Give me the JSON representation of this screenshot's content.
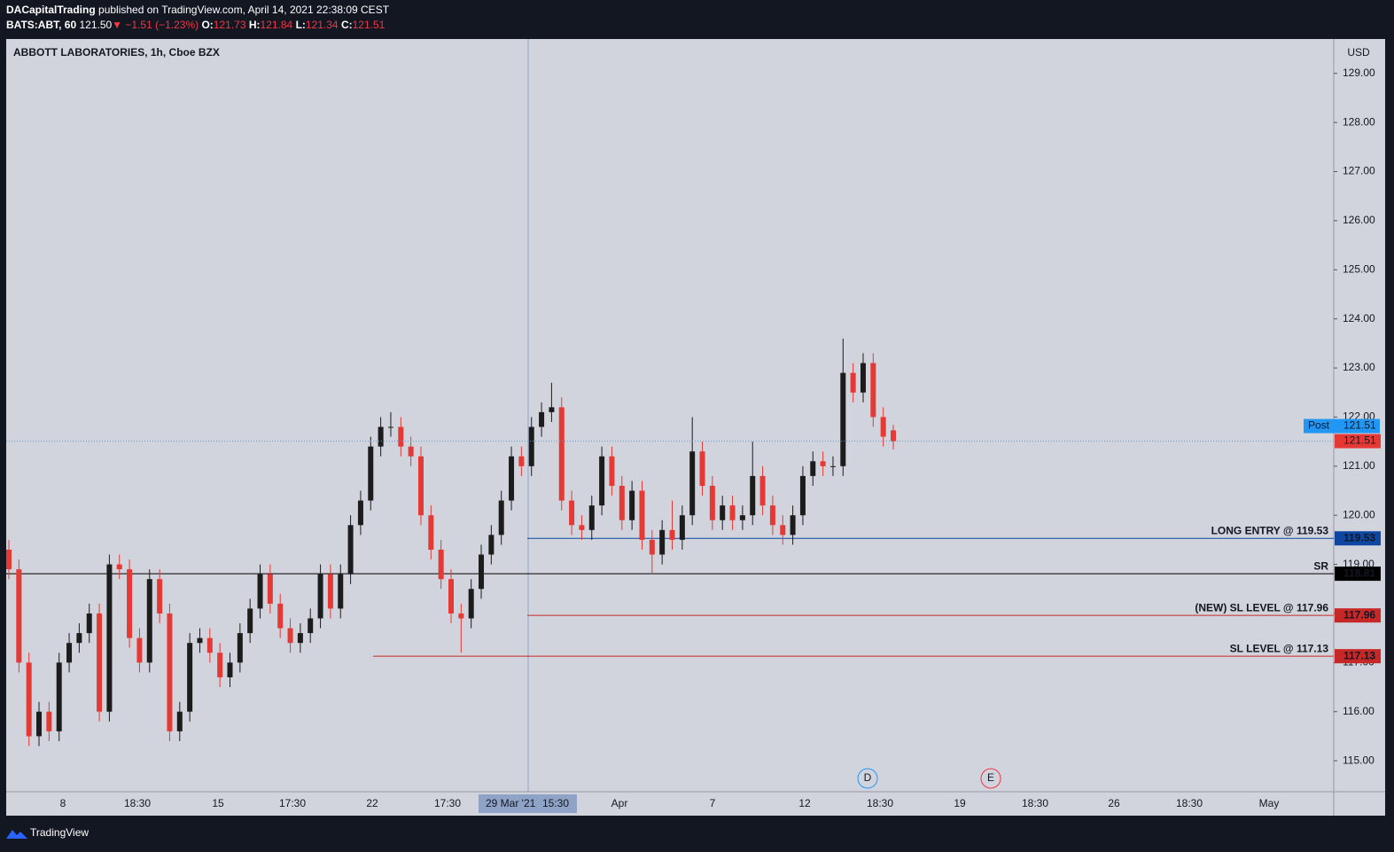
{
  "header": {
    "publisher": "DACapitalTrading",
    "published": "published on TradingView.com, April 14, 2021 22:38:09 CEST",
    "symbol": "BATS:ABT, 60",
    "last": "121.50",
    "change": "▼ −1.51 (−1.23%)",
    "ohlc_labels": [
      "O:",
      "H:",
      "L:",
      "C:"
    ]
  },
  "footer": "TradingView",
  "chart_data": {
    "type": "candlestick",
    "title": "ABBOTT LABORATORIES, 1h, Cboe BZX",
    "currency": "USD",
    "up_color": "#1c1c1c",
    "down_color": "#e53935",
    "ylim": [
      114.37,
      129.7
    ],
    "yticks": [
      {
        "value": 115,
        "label": "115.00"
      },
      {
        "value": 116,
        "label": "116.00"
      },
      {
        "value": 117,
        "label": "117.00"
      },
      {
        "value": 118,
        "label": "118.00"
      },
      {
        "value": 119,
        "label": "119.00"
      },
      {
        "value": 120,
        "label": "120.00"
      },
      {
        "value": 121,
        "label": "121.00"
      },
      {
        "value": 122,
        "label": "122.00"
      },
      {
        "value": 123,
        "label": "123.00"
      },
      {
        "value": 124,
        "label": "124.00"
      },
      {
        "value": 125,
        "label": "125.00"
      },
      {
        "value": 126,
        "label": "126.00"
      },
      {
        "value": 127,
        "label": "127.00"
      },
      {
        "value": 128,
        "label": "128.00"
      },
      {
        "value": 129,
        "label": "129.00"
      }
    ],
    "xticks": [
      "8",
      "18:30",
      "15",
      "17:30",
      "22",
      "17:30",
      "Apr",
      "7",
      "12",
      "18:30",
      "19",
      "18:30",
      "26",
      "18:30",
      "May"
    ],
    "crosshair": {
      "date": "29 Mar '21",
      "time": "15:30"
    },
    "events": [
      "D",
      "E"
    ],
    "post_price": {
      "label": "Post",
      "value": 121.51
    },
    "levels": [
      {
        "label": "LONG ENTRY @ 119.53",
        "value": 119.53,
        "color": "#0d47a1"
      },
      {
        "label": "SR",
        "value": 118.81,
        "color": "#000000"
      },
      {
        "label": "(NEW) SL LEVEL @ 117.96",
        "value": 117.96,
        "color": "#c62828"
      },
      {
        "label": "SL LEVEL @ 117.13",
        "value": 117.13,
        "color": "#c62828"
      }
    ],
    "ohlc": [
      [
        119.3,
        119.5,
        118.7,
        118.9
      ],
      [
        118.9,
        119.1,
        116.8,
        117.0
      ],
      [
        117.0,
        117.2,
        115.3,
        115.5
      ],
      [
        115.5,
        116.2,
        115.3,
        116.0
      ],
      [
        116.0,
        116.2,
        115.4,
        115.6
      ],
      [
        115.6,
        117.2,
        115.4,
        117.0
      ],
      [
        117.0,
        117.6,
        116.8,
        117.4
      ],
      [
        117.4,
        117.8,
        117.2,
        117.6
      ],
      [
        117.6,
        118.2,
        117.4,
        118.0
      ],
      [
        118.0,
        118.2,
        115.8,
        116.0
      ],
      [
        116.0,
        119.2,
        115.8,
        119.0
      ],
      [
        119.0,
        119.2,
        118.7,
        118.9
      ],
      [
        118.9,
        119.1,
        117.3,
        117.5
      ],
      [
        117.5,
        117.7,
        116.8,
        117.0
      ],
      [
        117.0,
        118.9,
        116.8,
        118.7
      ],
      [
        118.7,
        118.9,
        117.8,
        118.0
      ],
      [
        118.0,
        118.2,
        115.4,
        115.6
      ],
      [
        115.6,
        116.2,
        115.4,
        116.0
      ],
      [
        116.0,
        117.6,
        115.8,
        117.4
      ],
      [
        117.4,
        117.7,
        117.2,
        117.5
      ],
      [
        117.5,
        117.7,
        117.0,
        117.2
      ],
      [
        117.2,
        117.4,
        116.5,
        116.7
      ],
      [
        116.7,
        117.2,
        116.5,
        117.0
      ],
      [
        117.0,
        117.8,
        116.8,
        117.6
      ],
      [
        117.6,
        118.3,
        117.4,
        118.1
      ],
      [
        118.1,
        119.0,
        117.9,
        118.8
      ],
      [
        118.8,
        119.0,
        118.0,
        118.2
      ],
      [
        118.2,
        118.4,
        117.5,
        117.7
      ],
      [
        117.7,
        117.9,
        117.2,
        117.4
      ],
      [
        117.4,
        117.8,
        117.2,
        117.6
      ],
      [
        117.6,
        118.1,
        117.4,
        117.9
      ],
      [
        117.9,
        119.0,
        117.7,
        118.8
      ],
      [
        118.8,
        119.0,
        117.9,
        118.1
      ],
      [
        118.1,
        119.0,
        117.9,
        118.8
      ],
      [
        118.8,
        120.0,
        118.6,
        119.8
      ],
      [
        119.8,
        120.5,
        119.6,
        120.3
      ],
      [
        120.3,
        121.6,
        120.1,
        121.4
      ],
      [
        121.4,
        122.0,
        121.2,
        121.8
      ],
      [
        121.8,
        122.1,
        121.6,
        121.8
      ],
      [
        121.8,
        122.0,
        121.2,
        121.4
      ],
      [
        121.4,
        121.6,
        121.0,
        121.2
      ],
      [
        121.2,
        121.4,
        119.8,
        120.0
      ],
      [
        120.0,
        120.2,
        119.1,
        119.3
      ],
      [
        119.3,
        119.5,
        118.5,
        118.7
      ],
      [
        118.7,
        118.9,
        117.8,
        118.0
      ],
      [
        118.0,
        118.2,
        117.2,
        117.9
      ],
      [
        117.9,
        118.7,
        117.7,
        118.5
      ],
      [
        118.5,
        119.4,
        118.3,
        119.2
      ],
      [
        119.2,
        119.8,
        119.0,
        119.6
      ],
      [
        119.6,
        120.5,
        119.4,
        120.3
      ],
      [
        120.3,
        121.4,
        120.1,
        121.2
      ],
      [
        121.2,
        121.4,
        120.8,
        121.0
      ],
      [
        121.0,
        122.0,
        120.8,
        121.8
      ],
      [
        121.8,
        122.3,
        121.6,
        122.1
      ],
      [
        122.1,
        122.7,
        121.9,
        122.2
      ],
      [
        122.2,
        122.4,
        120.1,
        120.3
      ],
      [
        120.3,
        120.5,
        119.6,
        119.8
      ],
      [
        119.8,
        120.0,
        119.5,
        119.7
      ],
      [
        119.7,
        120.4,
        119.5,
        120.2
      ],
      [
        120.2,
        121.4,
        120.0,
        121.2
      ],
      [
        121.2,
        121.4,
        120.4,
        120.6
      ],
      [
        120.6,
        120.8,
        119.7,
        119.9
      ],
      [
        119.9,
        120.7,
        119.7,
        120.5
      ],
      [
        120.5,
        120.7,
        119.3,
        119.5
      ],
      [
        119.5,
        119.7,
        118.8,
        119.2
      ],
      [
        119.2,
        119.9,
        119.0,
        119.7
      ],
      [
        119.7,
        120.3,
        119.3,
        119.5
      ],
      [
        119.5,
        120.2,
        119.3,
        120.0
      ],
      [
        120.0,
        122.0,
        119.8,
        121.3
      ],
      [
        121.3,
        121.5,
        120.4,
        120.6
      ],
      [
        120.6,
        120.8,
        119.7,
        119.9
      ],
      [
        119.9,
        120.4,
        119.7,
        120.2
      ],
      [
        120.2,
        120.4,
        119.7,
        119.9
      ],
      [
        119.9,
        120.2,
        119.7,
        120.0
      ],
      [
        120.0,
        121.5,
        119.8,
        120.8
      ],
      [
        120.8,
        121.0,
        120.0,
        120.2
      ],
      [
        120.2,
        120.4,
        119.6,
        119.8
      ],
      [
        119.8,
        120.0,
        119.4,
        119.6
      ],
      [
        119.6,
        120.2,
        119.4,
        120.0
      ],
      [
        120.0,
        121.0,
        119.8,
        120.8
      ],
      [
        120.8,
        121.3,
        120.6,
        121.1
      ],
      [
        121.1,
        121.3,
        120.8,
        121.0
      ],
      [
        121.0,
        121.2,
        120.8,
        121.0
      ],
      [
        121.0,
        123.6,
        120.8,
        122.9
      ],
      [
        122.9,
        123.1,
        122.3,
        122.5
      ],
      [
        122.5,
        123.3,
        122.3,
        123.1
      ],
      [
        123.1,
        123.3,
        121.8,
        122.0
      ],
      [
        122.0,
        122.2,
        121.4,
        121.6
      ],
      [
        121.73,
        121.84,
        121.34,
        121.51
      ]
    ]
  }
}
